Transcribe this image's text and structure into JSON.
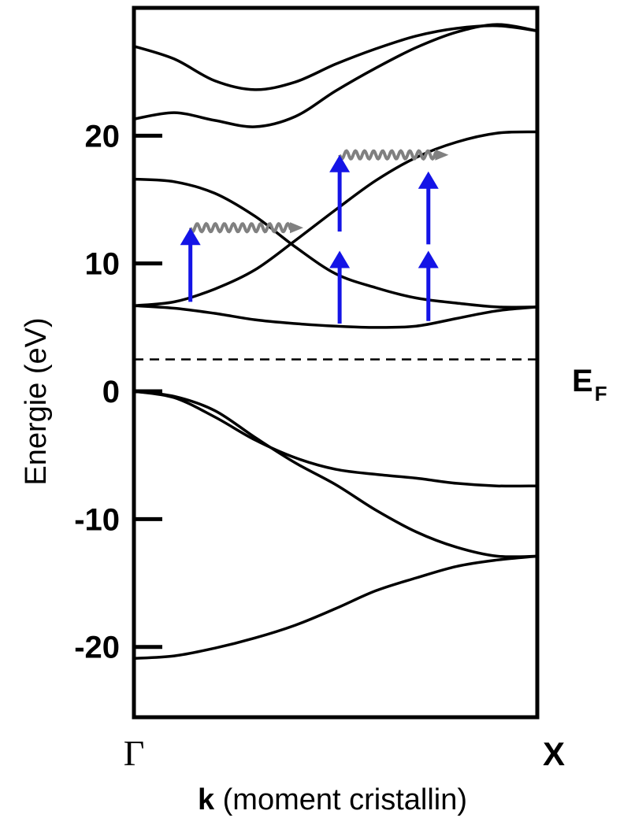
{
  "chart_data": {
    "type": "line",
    "title": "",
    "ylabel": "Energie (eV)",
    "xlabel_bold": "k",
    "xlabel_rest": " (moment cristallin)",
    "x_ticks": [
      "Γ",
      "X"
    ],
    "y_ticks": [
      {
        "value": 20,
        "label": "20"
      },
      {
        "value": 10,
        "label": "10"
      },
      {
        "value": 0,
        "label": "0"
      },
      {
        "value": -10,
        "label": "-10"
      },
      {
        "value": -20,
        "label": "-20"
      }
    ],
    "xlim": [
      0,
      1
    ],
    "ylim": [
      -25.5,
      30
    ],
    "grid": false,
    "fermi_level": {
      "value": 2.5,
      "label": "E",
      "subscript": "F",
      "style": "dashed"
    },
    "bands": [
      {
        "x": [
          0,
          0.1,
          0.2,
          0.3,
          0.4,
          0.5,
          0.6,
          0.7,
          0.8,
          0.9,
          1.0
        ],
        "y": [
          27.0,
          26.0,
          24.3,
          23.6,
          24.2,
          25.6,
          26.8,
          27.8,
          28.4,
          28.6,
          28.2
        ]
      },
      {
        "x": [
          0,
          0.1,
          0.2,
          0.3,
          0.4,
          0.5,
          0.6,
          0.7,
          0.8,
          0.9,
          1.0
        ],
        "y": [
          21.3,
          21.8,
          21.2,
          20.7,
          21.5,
          23.5,
          25.3,
          26.9,
          28.1,
          28.7,
          28.2
        ]
      },
      {
        "x": [
          0,
          0.1,
          0.2,
          0.3,
          0.4,
          0.5,
          0.6,
          0.7,
          0.8,
          0.9,
          1.0
        ],
        "y": [
          16.6,
          16.4,
          15.5,
          13.7,
          11.3,
          9.2,
          8.1,
          7.3,
          6.9,
          6.6,
          6.6
        ]
      },
      {
        "x": [
          0,
          0.1,
          0.2,
          0.3,
          0.4,
          0.5,
          0.6,
          0.7,
          0.8,
          0.9,
          1.0
        ],
        "y": [
          6.7,
          7.0,
          8.0,
          9.5,
          11.8,
          14.2,
          16.5,
          18.3,
          19.5,
          20.2,
          20.3
        ]
      },
      {
        "x": [
          0,
          0.1,
          0.2,
          0.3,
          0.4,
          0.5,
          0.6,
          0.7,
          0.8,
          0.9,
          1.0
        ],
        "y": [
          6.7,
          6.5,
          6.1,
          5.6,
          5.3,
          5.1,
          5.0,
          5.1,
          5.7,
          6.3,
          6.6
        ]
      },
      {
        "x": [
          0,
          0.1,
          0.2,
          0.3,
          0.4,
          0.5,
          0.6,
          0.7,
          0.8,
          0.9,
          1.0
        ],
        "y": [
          0.0,
          -0.5,
          -2.0,
          -3.8,
          -5.2,
          -6.1,
          -6.5,
          -6.8,
          -7.2,
          -7.4,
          -7.4
        ]
      },
      {
        "x": [
          0,
          0.1,
          0.2,
          0.3,
          0.4,
          0.5,
          0.6,
          0.7,
          0.8,
          0.9,
          1.0
        ],
        "y": [
          0.0,
          -0.4,
          -1.5,
          -3.6,
          -5.6,
          -7.3,
          -9.3,
          -11.0,
          -12.2,
          -12.9,
          -12.9
        ]
      },
      {
        "x": [
          0,
          0.1,
          0.2,
          0.3,
          0.4,
          0.5,
          0.6,
          0.7,
          0.8,
          0.9,
          1.0
        ],
        "y": [
          -20.9,
          -20.7,
          -20.1,
          -19.3,
          -18.3,
          -17.0,
          -15.6,
          -14.6,
          -13.7,
          -13.2,
          -12.9
        ]
      }
    ],
    "annotations": {
      "excitation_arrows": [
        {
          "x": 0.14,
          "from": 7.0,
          "to": 12.8
        },
        {
          "x": 0.51,
          "from": 5.3,
          "to": 11.0
        },
        {
          "x": 0.51,
          "from": 12.5,
          "to": 18.5
        },
        {
          "x": 0.73,
          "from": 5.5,
          "to": 11.0
        },
        {
          "x": 0.73,
          "from": 11.5,
          "to": 17.2
        }
      ],
      "phonon_arrows": [
        {
          "x1": 0.14,
          "x2": 0.42,
          "y": 12.8
        },
        {
          "x1": 0.51,
          "x2": 0.78,
          "y": 18.5
        }
      ],
      "colors": {
        "excitation": "#1414e6",
        "phonon": "#808080",
        "bands": "#000000"
      }
    }
  }
}
